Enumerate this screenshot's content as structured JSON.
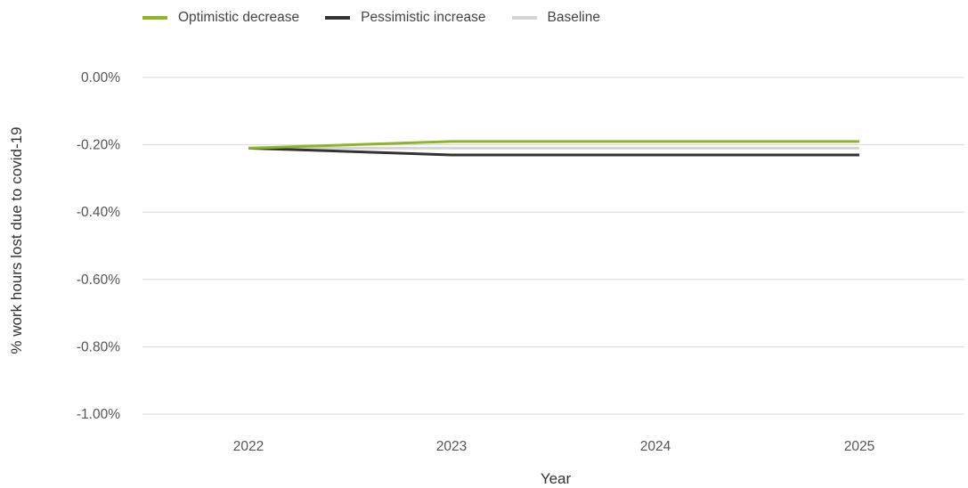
{
  "chart_data": {
    "type": "line",
    "xlabel": "Year",
    "ylabel": "% work hours lost due to covid-19",
    "x": [
      "2022",
      "2023",
      "2024",
      "2025"
    ],
    "ylim": [
      -1.0,
      0.0
    ],
    "yticks": [
      0.0,
      -0.2,
      -0.4,
      -0.6,
      -0.8,
      -1.0
    ],
    "ytick_labels": [
      "0.00%",
      "-0.20%",
      "-0.40%",
      "-0.60%",
      "-0.80%",
      "-1.00%"
    ],
    "grid": "horizontal",
    "legend_position": "top-left",
    "series": [
      {
        "name": "Optimistic decrease",
        "color": "#8db52a",
        "values": [
          -0.21,
          -0.19,
          -0.19,
          -0.19
        ]
      },
      {
        "name": "Pessimistic increase",
        "color": "#333333",
        "values": [
          -0.21,
          -0.23,
          -0.23,
          -0.23
        ]
      },
      {
        "name": "Baseline",
        "color": "#d4d4d4",
        "values": [
          -0.21,
          -0.21,
          -0.21,
          -0.21
        ]
      }
    ]
  }
}
